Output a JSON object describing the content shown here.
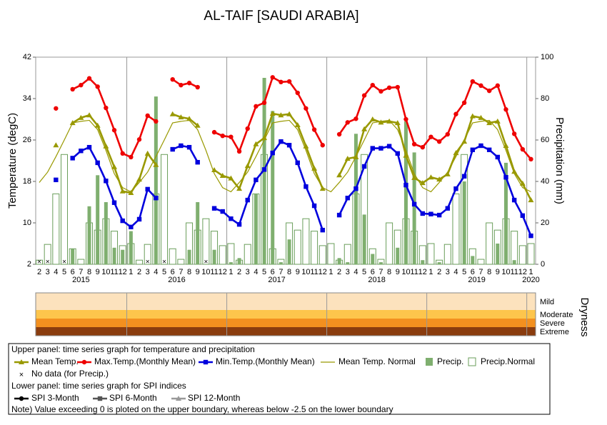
{
  "chart_data": [
    {
      "type": "combo",
      "title": "AL-TAIF [SAUDI ARABIA]",
      "ylabel": "Temperature (degC)",
      "y2label": "Precipitation (mm)",
      "categories": [
        "2",
        "3",
        "4",
        "5",
        "6",
        "7",
        "8",
        "9",
        "10",
        "11",
        "12",
        "1",
        "2",
        "3",
        "4",
        "5",
        "6",
        "7",
        "8",
        "9",
        "10",
        "11",
        "12",
        "1",
        "2",
        "3",
        "4",
        "5",
        "6",
        "7",
        "8",
        "9",
        "10",
        "11",
        "12",
        "1",
        "2",
        "3",
        "4",
        "5",
        "6",
        "7",
        "8",
        "9",
        "10",
        "11",
        "12",
        "1",
        "2",
        "3",
        "4",
        "5",
        "6",
        "7",
        "8",
        "9",
        "10",
        "11",
        "12",
        "1"
      ],
      "years": [
        "2015",
        "2015",
        "2015",
        "2015",
        "2015",
        "2015",
        "2015",
        "2015",
        "2015",
        "2015",
        "2015",
        "2016",
        "2016",
        "2016",
        "2016",
        "2016",
        "2016",
        "2016",
        "2016",
        "2016",
        "2016",
        "2016",
        "2016",
        "2017",
        "2017",
        "2017",
        "2017",
        "2017",
        "2017",
        "2017",
        "2017",
        "2017",
        "2017",
        "2017",
        "2017",
        "2018",
        "2018",
        "2018",
        "2018",
        "2018",
        "2018",
        "2018",
        "2018",
        "2018",
        "2018",
        "2018",
        "2018",
        "2019",
        "2019",
        "2019",
        "2019",
        "2019",
        "2019",
        "2019",
        "2019",
        "2019",
        "2019",
        "2019",
        "2019",
        "2020"
      ],
      "ylim": [
        2,
        42
      ],
      "yticks": [
        2,
        10,
        18,
        26,
        34,
        42
      ],
      "y2lim": [
        0,
        100
      ],
      "y2ticks": [
        0,
        20,
        40,
        60,
        80,
        100
      ],
      "series": [
        {
          "name": "Precip.Normal",
          "style": "bar-hollow",
          "axis": "y2",
          "color": "#6a9e5a",
          "values": [
            2,
            9.6,
            34,
            53,
            7.5,
            2.4,
            20,
            16.5,
            22,
            16,
            9,
            10,
            2,
            9.6,
            34,
            53,
            7.5,
            2.4,
            20,
            16.5,
            22,
            16,
            9,
            10,
            2,
            9.6,
            34,
            53,
            7.5,
            2.4,
            20,
            16.5,
            22,
            16,
            9,
            10,
            2,
            9.6,
            34,
            53,
            7.5,
            2.4,
            20,
            16.5,
            22,
            16,
            9,
            10,
            2,
            9.6,
            34,
            53,
            7.5,
            2.4,
            20,
            16.5,
            22,
            16,
            9,
            10
          ]
        },
        {
          "name": "Precip.",
          "style": "bar",
          "axis": "y2",
          "color": "#7faf6f",
          "values": [
            null,
            null,
            0,
            null,
            7.5,
            0,
            28,
            43,
            30,
            8,
            7,
            16,
            0,
            null,
            81,
            null,
            0,
            0,
            7,
            30,
            null,
            7,
            0,
            1,
            3,
            0,
            34,
            90,
            74,
            1,
            12,
            0,
            0,
            0,
            0,
            0,
            3,
            1,
            63,
            24,
            5,
            1,
            0,
            8,
            69,
            54,
            2,
            0,
            1,
            0,
            0,
            40,
            4,
            0,
            0,
            10,
            49,
            2,
            0,
            0
          ]
        },
        {
          "name": "Mean Temp. Normal",
          "style": "line",
          "color": "#999900",
          "values": [
            17.8,
            19.8,
            22.8,
            26,
            29.3,
            29.6,
            29.8,
            28,
            24,
            19.5,
            16.8,
            16,
            17.8,
            19.8,
            22.8,
            26,
            29.3,
            29.6,
            29.8,
            28,
            24,
            19.5,
            16.8,
            16,
            17.8,
            19.8,
            22.8,
            26,
            29.3,
            29.6,
            29.8,
            28,
            24,
            19.5,
            16.8,
            16,
            17.8,
            19.8,
            22.8,
            26,
            29.3,
            29.6,
            29.8,
            28,
            24,
            19.5,
            16.8,
            16,
            17.8,
            19.8,
            22.8,
            26,
            29.3,
            29.6,
            29.8,
            28,
            24,
            19.5,
            16.8,
            16
          ]
        },
        {
          "name": "Max.Temp.(Monthly Mean)",
          "style": "line-circle",
          "color": "#ee0000",
          "values": [
            null,
            null,
            32.1,
            null,
            35.8,
            36.6,
            37.9,
            36.3,
            32.2,
            27.9,
            23.4,
            22.7,
            26.1,
            30.7,
            29.6,
            null,
            37.7,
            36.6,
            37,
            36.2,
            null,
            27.5,
            26.8,
            26.6,
            23.8,
            28.2,
            32.5,
            33.2,
            38.1,
            37.2,
            37.3,
            35.1,
            32.1,
            28,
            25,
            null,
            27.1,
            29.4,
            30.1,
            34.6,
            36.6,
            35.4,
            36.1,
            36.2,
            30,
            25.2,
            24.6,
            26.6,
            25.7,
            27.1,
            31,
            33.2,
            37.3,
            36.5,
            35.5,
            36.5,
            31.9,
            27.2,
            24.2,
            22.3
          ]
        },
        {
          "name": "Min.Temp.(Monthly Mean)",
          "style": "line-square",
          "color": "#0000dd",
          "values": [
            null,
            null,
            18.3,
            null,
            22.5,
            23.9,
            24.6,
            21.6,
            18.1,
            13.9,
            10.4,
            9.2,
            10.7,
            16.5,
            14.8,
            null,
            24.2,
            24.9,
            24.6,
            21.7,
            null,
            12.8,
            12.2,
            10.8,
            9.7,
            14.4,
            18.3,
            20.3,
            23.5,
            25.7,
            25,
            21.6,
            17,
            13.3,
            8.6,
            null,
            11.5,
            14.8,
            16.6,
            20.9,
            24.4,
            24.4,
            24.8,
            23.4,
            17.3,
            13.6,
            11.8,
            11.7,
            11.5,
            12.8,
            16.6,
            19,
            24.1,
            24.9,
            24.1,
            22.7,
            18.8,
            14.4,
            11.4,
            7.5
          ]
        },
        {
          "name": "Mean Temp.",
          "style": "line-triangle",
          "color": "#999900",
          "values": [
            null,
            null,
            25,
            null,
            29.3,
            30.3,
            30.8,
            28.8,
            24.8,
            20.8,
            16.1,
            15.8,
            18.4,
            23.4,
            21.2,
            null,
            31,
            30.4,
            30.1,
            28.8,
            null,
            20.2,
            19.1,
            18.6,
            16.6,
            21,
            25.2,
            26.4,
            31.1,
            30.8,
            31,
            28.9,
            24.8,
            20.5,
            16.6,
            null,
            19.2,
            22.4,
            22.7,
            28.1,
            30,
            29.4,
            29.6,
            29.3,
            23,
            18.7,
            17.7,
            18.8,
            18.4,
            19.4,
            23.5,
            25.7,
            30.6,
            30.3,
            29.3,
            29.6,
            24.9,
            19.9,
            17.6,
            14.4
          ]
        }
      ]
    },
    {
      "type": "spi",
      "ylabel": "Dryness",
      "ylim": [
        -2.5,
        0
      ],
      "bands": [
        {
          "label": "Mild",
          "range": [
            -1,
            0
          ],
          "color": "#fce2bd"
        },
        {
          "label": "Moderate",
          "range": [
            -1.5,
            -1
          ],
          "color": "#fdc54c"
        },
        {
          "label": "Severe",
          "range": [
            -2,
            -1.5
          ],
          "color": "#f3901f"
        },
        {
          "label": "Extreme",
          "range": [
            -2.5,
            -2
          ],
          "color": "#8a3c0e"
        }
      ],
      "series": [
        {
          "name": "SPI 3-Month",
          "style": "line-circle",
          "color": "#000000",
          "values": [
            null,
            null,
            null,
            null,
            null,
            null,
            null,
            null,
            null,
            null,
            null,
            null,
            null,
            null,
            null,
            null,
            null,
            null,
            null,
            null,
            null,
            null,
            null,
            null,
            null,
            null,
            null,
            null,
            null,
            null,
            null,
            null,
            null,
            null,
            null,
            null,
            null,
            null,
            null,
            null,
            null,
            null,
            null,
            null,
            null,
            null,
            null,
            null,
            null,
            null,
            null,
            null,
            null,
            null,
            null,
            null,
            null,
            null,
            null,
            null
          ]
        },
        {
          "name": "SPI 6-Month",
          "style": "line-square",
          "color": "#555555",
          "values": [
            null,
            null,
            null,
            null,
            null,
            null,
            null,
            null,
            null,
            null,
            null,
            null,
            null,
            null,
            null,
            null,
            null,
            null,
            null,
            null,
            null,
            null,
            null,
            null,
            null,
            null,
            null,
            null,
            null,
            null,
            null,
            null,
            null,
            null,
            null,
            null,
            null,
            null,
            null,
            null,
            null,
            null,
            null,
            null,
            null,
            null,
            null,
            null,
            null,
            null,
            null,
            null,
            null,
            null,
            null,
            null,
            null,
            null,
            null,
            null
          ]
        },
        {
          "name": "SPI 12-Month",
          "style": "line-triangle",
          "color": "#999999",
          "values": [
            null,
            null,
            null,
            null,
            null,
            null,
            null,
            null,
            null,
            null,
            null,
            null,
            null,
            null,
            null,
            null,
            null,
            null,
            null,
            null,
            null,
            null,
            null,
            null,
            null,
            null,
            null,
            null,
            null,
            null,
            null,
            null,
            null,
            null,
            null,
            null,
            null,
            null,
            null,
            null,
            null,
            null,
            null,
            null,
            null,
            null,
            null,
            null,
            null,
            null,
            null,
            null,
            null,
            null,
            null,
            null,
            null,
            null,
            null,
            null
          ]
        }
      ]
    }
  ],
  "legend": {
    "upper_heading": "Upper panel: time series graph for temperature and precipitation",
    "no_data": "No data (for Precip.)",
    "lower_heading": "Lower panel: time series graph for SPI indices",
    "note": "Note) Value exceeding 0 is ploted on the upper boundary, whereas below -2.5 on the lower boundary"
  }
}
